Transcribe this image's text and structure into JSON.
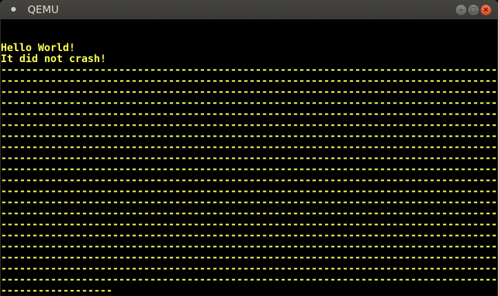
{
  "window": {
    "title": "QEMU",
    "accent_close": "#e8531f"
  },
  "controls": {
    "minimize": "–",
    "maximize": "□",
    "close": "×"
  },
  "console": {
    "text_color": "#ffff55",
    "lines": [
      "",
      "",
      "Hello World!",
      "It did not crash!",
      "--------------------------------------------------------------------------------",
      "--------------------------------------------------------------------------------",
      "--------------------------------------------------------------------------------",
      "--------------------------------------------------------------------------------",
      "--------------------------------------------------------------------------------",
      "--------------------------------------------------------------------------------",
      "--------------------------------------------------------------------------------",
      "--------------------------------------------------------------------------------",
      "--------------------------------------------------------------------------------",
      "--------------------------------------------------------------------------------",
      "--------------------------------------------------------------------------------",
      "--------------------------------------------------------------------------------",
      "--------------------------------------------------------------------------------",
      "--------------------------------------------------------------------------------",
      "--------------------------------------------------------------------------------",
      "--------------------------------------------------------------------------------",
      "--------------------------------------------------------------------------------",
      "--------------------------------------------------------------------------------",
      "--------------------------------------------------------------------------------",
      "--------------------------------------------------------------------------------",
      "------------------"
    ]
  }
}
